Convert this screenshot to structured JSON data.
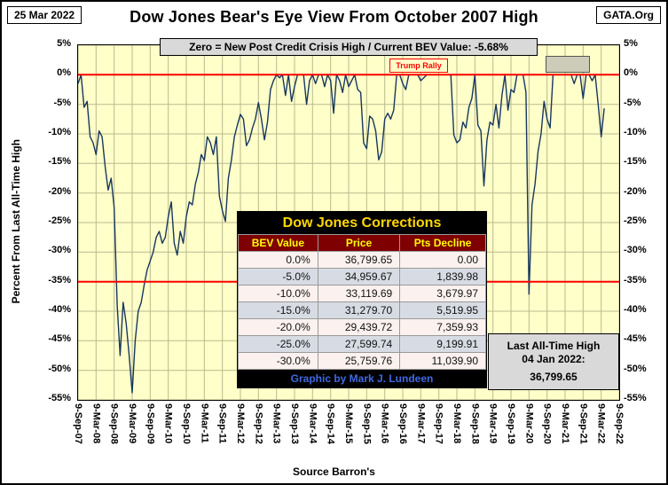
{
  "header": {
    "date_badge": "25 Mar 2022",
    "title": "Dow Jones Bear's Eye View From October 2007 High",
    "logo": "GATA.Org"
  },
  "subtitle": {
    "text": "Zero = New Post Credit Crisis High / Current  BEV Value:",
    "value": "-5.68%"
  },
  "annotations": {
    "trump_rally": "Trump Rally"
  },
  "table": {
    "title": "Dow Jones Corrections",
    "headers": [
      "BEV Value",
      "Price",
      "Pts Decline"
    ],
    "rows": [
      [
        "0.0%",
        "36,799.65",
        "0.00"
      ],
      [
        "-5.0%",
        "34,959.67",
        "1,839.98"
      ],
      [
        "-10.0%",
        "33,119.69",
        "3,679.97"
      ],
      [
        "-15.0%",
        "31,279.70",
        "5,519.95"
      ],
      [
        "-20.0%",
        "29,439.72",
        "7,359.93"
      ],
      [
        "-25.0%",
        "27,599.74",
        "9,199.91"
      ],
      [
        "-30.0%",
        "25,759.76",
        "11,039.90"
      ]
    ],
    "footer": "Graphic by Mark J. Lundeen"
  },
  "ath_box": {
    "line1": "Last All-Time High",
    "line2": "04 Jan 2022:",
    "line3": "36,799.65"
  },
  "axes": {
    "y_left_title": "Percent From Last All-Time High",
    "x_title": "Source Barron's"
  },
  "chart_data": {
    "type": "line",
    "title": "Dow Jones Bear's Eye View From October 2007 High",
    "xlabel": "Source Barron's",
    "ylabel": "Percent From Last All-Time High",
    "ylim": [
      -55,
      5
    ],
    "grid": true,
    "plot_bg": "#FFFFC9",
    "line_color": "#17375E",
    "zero_line_color": "#FF0000",
    "ref_lines_pct": [
      0,
      -35
    ],
    "y_ticks": [
      "5%",
      "0%",
      "-5%",
      "-10%",
      "-15%",
      "-20%",
      "-25%",
      "-30%",
      "-35%",
      "-40%",
      "-45%",
      "-50%",
      "-55%"
    ],
    "x_ticks": [
      "9-Sep-07",
      "9-Mar-08",
      "9-Sep-08",
      "9-Mar-09",
      "9-Sep-09",
      "9-Mar-10",
      "9-Sep-10",
      "9-Mar-11",
      "9-Sep-11",
      "9-Mar-12",
      "9-Sep-12",
      "9-Mar-13",
      "9-Sep-13",
      "9-Mar-14",
      "9-Sep-14",
      "9-Mar-15",
      "9-Sep-15",
      "9-Mar-16",
      "9-Sep-16",
      "9-Mar-17",
      "9-Sep-17",
      "9-Mar-18",
      "9-Sep-18",
      "9-Mar-19",
      "9-Sep-19",
      "9-Mar-20",
      "9-Sep-20",
      "9-Mar-21",
      "9-Sep-21",
      "9-Mar-22",
      "9-Sep-22"
    ],
    "x_unit": "months since Sep 2007, axis spans 180 months (Sep-07 to Sep-22)",
    "x_tick_interval_months": 6,
    "series": [
      {
        "name": "Dow Jones BEV (% from last all-time high)",
        "start_month": 0,
        "step_months": 1,
        "values": [
          -1.5,
          0,
          -5.5,
          -4.5,
          -10.5,
          -11.5,
          -13.5,
          -9.5,
          -10.5,
          -15.5,
          -19.5,
          -17.5,
          -22.5,
          -39,
          -47.5,
          -38.5,
          -42,
          -47.5,
          -53.8,
          -45,
          -40,
          -38.5,
          -35.5,
          -33,
          -31.5,
          -30,
          -27.5,
          -26.5,
          -28.5,
          -27.5,
          -24,
          -21.5,
          -28.5,
          -30.5,
          -26.5,
          -28.5,
          -24,
          -21.5,
          -22,
          -18.5,
          -16.5,
          -13.5,
          -14.5,
          -10.5,
          -11.5,
          -13.5,
          -10.5,
          -20.5,
          -23,
          -24.8,
          -17.5,
          -14.5,
          -10.5,
          -8.5,
          -6.7,
          -7.5,
          -12,
          -11,
          -9,
          -7.5,
          -4.7,
          -7.5,
          -11,
          -8,
          -2.5,
          -1,
          0,
          -0.5,
          0,
          -3.5,
          0,
          -4.5,
          -2,
          0,
          0,
          0,
          -5,
          -1,
          0,
          -1.5,
          0,
          0,
          -2,
          0,
          -1,
          -6.5,
          0,
          -1,
          -3,
          0,
          -2,
          -1,
          0,
          -2.5,
          -3,
          -11.5,
          -12.5,
          -7,
          -7.5,
          -9.5,
          -14.4,
          -13,
          -7.5,
          -6.5,
          -7.5,
          -6,
          0,
          0,
          -1.5,
          -2.5,
          0,
          0,
          0,
          0,
          -1,
          -0.5,
          0,
          0,
          0,
          0,
          0,
          0,
          0,
          0,
          0,
          -10.2,
          -11.5,
          -11,
          -8,
          -9,
          -5.5,
          -4,
          0,
          -8.5,
          -9.5,
          -18.8,
          -11,
          -8,
          -8.5,
          -5,
          -9,
          -3.5,
          0,
          -6,
          -2.5,
          -3,
          0,
          0,
          0,
          -3,
          -37.1,
          -22,
          -18.5,
          -13,
          -10,
          -4.5,
          -7.5,
          -9,
          0,
          0,
          0,
          0,
          0,
          0,
          0,
          -1.5,
          0,
          0,
          -4,
          0,
          0,
          -1,
          0,
          -5,
          -10.5,
          -5.68
        ]
      }
    ],
    "annotations": [
      {
        "label": "Trump Rally",
        "approx_period": "2016-2017",
        "style": "red box"
      },
      {
        "label": "",
        "approx_period": "late 2020 - early 2022",
        "style": "tan highlight box"
      }
    ],
    "current_bev_value": "-5.68%",
    "last_all_time_high": {
      "date": "04 Jan 2022",
      "price": "36,799.65"
    }
  }
}
